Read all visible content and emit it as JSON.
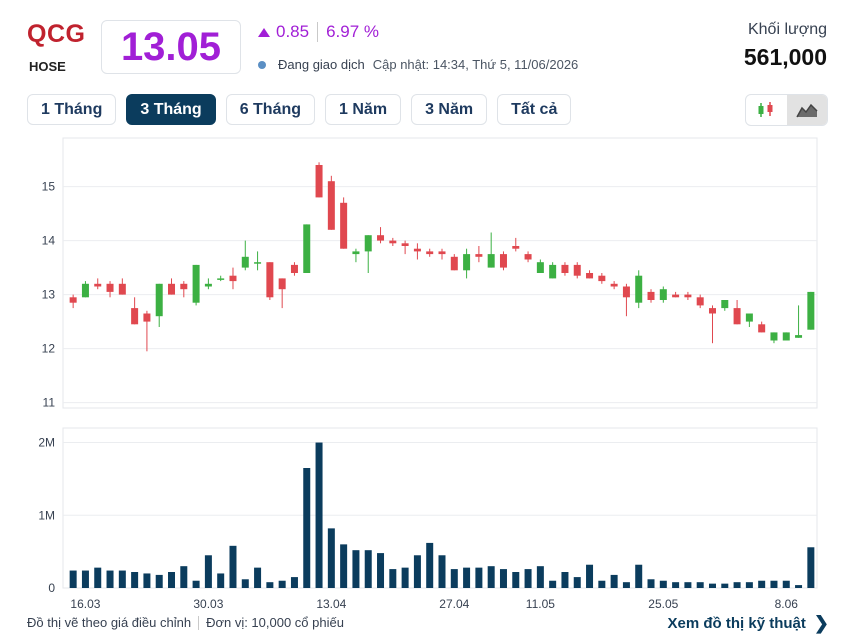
{
  "header": {
    "ticker": "QCG",
    "exchange": "HOSE",
    "price": "13.05",
    "change": "0.85",
    "change_pct": "6.97 %",
    "status": "Đang giao dịch",
    "updated": "Cập nhật: 14:34, Thứ 5, 11/06/2026",
    "volume_label": "Khối lượng",
    "volume_value": "561,000"
  },
  "tabs": [
    {
      "label": "1 Tháng",
      "active": false
    },
    {
      "label": "3 Tháng",
      "active": true
    },
    {
      "label": "6 Tháng",
      "active": false
    },
    {
      "label": "1 Năm",
      "active": false
    },
    {
      "label": "3 Năm",
      "active": false
    },
    {
      "label": "Tất cả",
      "active": false
    }
  ],
  "chart_type_toggle": [
    {
      "icon": "candlestick-icon",
      "active": false
    },
    {
      "icon": "area-chart-icon",
      "active": true
    }
  ],
  "colors": {
    "up": "#3cb043",
    "down": "#e0484f",
    "volume": "#0b3c5d",
    "accent": "#a11fd6",
    "ticker": "#c0222e"
  },
  "footer": {
    "note1": "Đồ thị vẽ theo giá điều chỉnh",
    "note2": "Đơn vị: 10,000 cổ phiếu",
    "link": "Xem đồ thị kỹ thuật"
  },
  "chart_data": [
    {
      "type": "candlestick",
      "title": "",
      "ylim": [
        10.9,
        15.9
      ],
      "y_ticks": [
        "11",
        "12",
        "13",
        "14",
        "15"
      ],
      "x_tick_labels": [
        {
          "index": 1,
          "label": "16.03"
        },
        {
          "index": 11,
          "label": "30.03"
        },
        {
          "index": 21,
          "label": "13.04"
        },
        {
          "index": 31,
          "label": "27.04"
        },
        {
          "index": 38,
          "label": "11.05"
        },
        {
          "index": 48,
          "label": "25.05"
        },
        {
          "index": 58,
          "label": "8.06"
        }
      ],
      "ohlc": [
        [
          12.95,
          13.0,
          12.75,
          12.85
        ],
        [
          12.95,
          13.25,
          12.95,
          13.2
        ],
        [
          13.2,
          13.3,
          13.1,
          13.15
        ],
        [
          13.2,
          13.25,
          12.95,
          13.05
        ],
        [
          13.2,
          13.3,
          13.0,
          13.0
        ],
        [
          12.75,
          12.95,
          12.45,
          12.45
        ],
        [
          12.65,
          12.7,
          11.95,
          12.5
        ],
        [
          12.6,
          13.2,
          12.4,
          13.2
        ],
        [
          13.2,
          13.3,
          13.0,
          13.0
        ],
        [
          13.2,
          13.25,
          12.95,
          13.1
        ],
        [
          12.85,
          13.55,
          12.8,
          13.55
        ],
        [
          13.15,
          13.3,
          13.1,
          13.2
        ],
        [
          13.3,
          13.35,
          13.25,
          13.3
        ],
        [
          13.35,
          13.5,
          13.1,
          13.25
        ],
        [
          13.5,
          14.0,
          13.45,
          13.7
        ],
        [
          13.6,
          13.8,
          13.45,
          13.6
        ],
        [
          13.6,
          13.6,
          12.9,
          12.95
        ],
        [
          13.3,
          13.3,
          12.75,
          13.1
        ],
        [
          13.55,
          13.6,
          13.35,
          13.4
        ],
        [
          13.4,
          14.3,
          13.4,
          14.3
        ],
        [
          15.4,
          15.45,
          14.8,
          14.8
        ],
        [
          15.1,
          15.2,
          14.2,
          14.2
        ],
        [
          14.7,
          14.8,
          13.85,
          13.85
        ],
        [
          13.75,
          13.85,
          13.6,
          13.8
        ],
        [
          13.8,
          14.1,
          13.4,
          14.1
        ],
        [
          14.1,
          14.25,
          13.95,
          14.0
        ],
        [
          14.0,
          14.05,
          13.9,
          13.95
        ],
        [
          13.95,
          14.0,
          13.75,
          13.9
        ],
        [
          13.85,
          13.95,
          13.65,
          13.8
        ],
        [
          13.8,
          13.85,
          13.7,
          13.75
        ],
        [
          13.8,
          13.85,
          13.65,
          13.75
        ],
        [
          13.7,
          13.75,
          13.45,
          13.45
        ],
        [
          13.45,
          13.85,
          13.3,
          13.75
        ],
        [
          13.75,
          13.9,
          13.6,
          13.7
        ],
        [
          13.5,
          14.15,
          13.5,
          13.75
        ],
        [
          13.75,
          13.8,
          13.45,
          13.5
        ],
        [
          13.9,
          14.05,
          13.8,
          13.85
        ],
        [
          13.75,
          13.8,
          13.6,
          13.65
        ],
        [
          13.4,
          13.65,
          13.4,
          13.6
        ],
        [
          13.3,
          13.6,
          13.3,
          13.55
        ],
        [
          13.55,
          13.6,
          13.35,
          13.4
        ],
        [
          13.55,
          13.6,
          13.3,
          13.35
        ],
        [
          13.4,
          13.45,
          13.3,
          13.3
        ],
        [
          13.35,
          13.4,
          13.2,
          13.25
        ],
        [
          13.2,
          13.25,
          13.1,
          13.15
        ],
        [
          13.15,
          13.2,
          12.6,
          12.95
        ],
        [
          12.85,
          13.45,
          12.75,
          13.35
        ],
        [
          13.05,
          13.1,
          12.85,
          12.9
        ],
        [
          12.9,
          13.15,
          12.85,
          13.1
        ],
        [
          13.0,
          13.05,
          12.95,
          12.95
        ],
        [
          13.0,
          13.05,
          12.9,
          12.95
        ],
        [
          12.95,
          13.0,
          12.75,
          12.8
        ],
        [
          12.75,
          12.8,
          12.1,
          12.65
        ],
        [
          12.75,
          12.9,
          12.7,
          12.9
        ],
        [
          12.75,
          12.9,
          12.45,
          12.45
        ],
        [
          12.5,
          12.65,
          12.4,
          12.65
        ],
        [
          12.45,
          12.5,
          12.3,
          12.3
        ],
        [
          12.15,
          12.3,
          12.1,
          12.3
        ],
        [
          12.15,
          12.3,
          12.15,
          12.3
        ],
        [
          12.2,
          12.8,
          12.2,
          12.25
        ],
        [
          12.35,
          13.05,
          12.35,
          13.05
        ]
      ]
    },
    {
      "type": "bar",
      "title": "",
      "ylabel": "",
      "ylim": [
        0,
        2.2
      ],
      "y_ticks": [
        "0",
        "1M",
        "2M"
      ],
      "unit": "million shares",
      "values": [
        0.24,
        0.24,
        0.28,
        0.24,
        0.24,
        0.22,
        0.2,
        0.18,
        0.22,
        0.3,
        0.1,
        0.45,
        0.2,
        0.58,
        0.12,
        0.28,
        0.08,
        0.1,
        0.15,
        1.65,
        2.0,
        0.82,
        0.6,
        0.52,
        0.52,
        0.48,
        0.26,
        0.28,
        0.45,
        0.62,
        0.45,
        0.26,
        0.28,
        0.28,
        0.3,
        0.26,
        0.22,
        0.26,
        0.3,
        0.1,
        0.22,
        0.15,
        0.32,
        0.1,
        0.18,
        0.08,
        0.32,
        0.12,
        0.1,
        0.08,
        0.08,
        0.08,
        0.06,
        0.06,
        0.08,
        0.08,
        0.1,
        0.1,
        0.1,
        0.04,
        0.56
      ]
    }
  ]
}
